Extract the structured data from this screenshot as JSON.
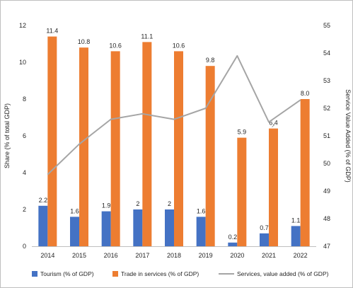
{
  "chart_data": {
    "type": "bar",
    "title": "",
    "categories": [
      "2014",
      "2015",
      "2016",
      "2017",
      "2018",
      "2019",
      "2020",
      "2021",
      "2022"
    ],
    "series": [
      {
        "name": "Tourism (% of GDP)",
        "type": "bar",
        "axis": "left",
        "color": "#4472c4",
        "values": [
          2.2,
          1.6,
          1.9,
          2,
          2,
          1.6,
          0.2,
          0.7,
          1.1
        ],
        "labels": [
          "2.2",
          "1.6",
          "1.9",
          "2",
          "2",
          "1.6",
          "0.2",
          "0.7",
          "1.1"
        ]
      },
      {
        "name": "Trade in services (% of GDP)",
        "type": "bar",
        "axis": "left",
        "color": "#ed7d31",
        "values": [
          11.4,
          10.8,
          10.6,
          11.1,
          10.6,
          9.8,
          5.9,
          6.4,
          8.0
        ],
        "labels": [
          "11.4",
          "10.8",
          "10.6",
          "11.1",
          "10.6",
          "9.8",
          "5.9",
          "6.4",
          "8.0"
        ]
      },
      {
        "name": "Services, value added (% of GDP)",
        "type": "line",
        "axis": "right",
        "color": "#a5a5a5",
        "values": [
          49.6,
          50.7,
          51.6,
          51.8,
          51.6,
          52.0,
          53.9,
          51.5,
          52.3
        ]
      }
    ],
    "ylabel": "Share (% of total GDP)",
    "ylim": [
      0,
      12
    ],
    "yticks": [
      "0",
      "2",
      "4",
      "6",
      "8",
      "10",
      "12"
    ],
    "y2label": "Service Value Added (% of GDP)",
    "y2lim": [
      47,
      55
    ],
    "y2ticks": [
      "47",
      "48",
      "49",
      "50",
      "51",
      "52",
      "53",
      "54",
      "55"
    ],
    "grid": false,
    "legend": "bottom"
  }
}
